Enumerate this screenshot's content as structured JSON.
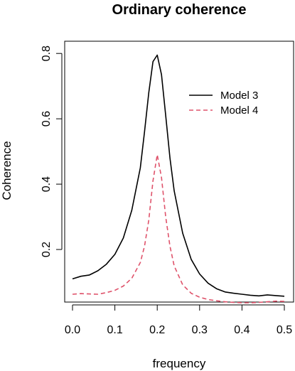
{
  "chart_data": {
    "type": "line",
    "title": "Ordinary coherence",
    "xlabel": "frequency",
    "ylabel": "Coherence",
    "xlim": [
      0.0,
      0.5
    ],
    "ylim": [
      0.05,
      0.82
    ],
    "xticks": [
      "0.0",
      "0.1",
      "0.2",
      "0.3",
      "0.4",
      "0.5"
    ],
    "yticks": [
      "0.2",
      "0.4",
      "0.6",
      "0.8"
    ],
    "legend_position": "top-right",
    "grid": false,
    "series": [
      {
        "name": "Model 3",
        "color": "#000000",
        "dash": "solid",
        "x": [
          0.0,
          0.02,
          0.04,
          0.06,
          0.08,
          0.1,
          0.12,
          0.14,
          0.16,
          0.17,
          0.18,
          0.19,
          0.2,
          0.21,
          0.22,
          0.23,
          0.24,
          0.26,
          0.28,
          0.3,
          0.32,
          0.34,
          0.36,
          0.38,
          0.4,
          0.42,
          0.44,
          0.46,
          0.48,
          0.5
        ],
        "y": [
          0.11,
          0.118,
          0.122,
          0.135,
          0.155,
          0.185,
          0.235,
          0.32,
          0.45,
          0.56,
          0.68,
          0.775,
          0.795,
          0.735,
          0.61,
          0.48,
          0.38,
          0.25,
          0.17,
          0.125,
          0.097,
          0.08,
          0.07,
          0.066,
          0.063,
          0.06,
          0.058,
          0.061,
          0.059,
          0.057
        ]
      },
      {
        "name": "Model 4",
        "color": "#df536b",
        "dash": "dashed",
        "x": [
          0.0,
          0.02,
          0.04,
          0.06,
          0.08,
          0.1,
          0.12,
          0.14,
          0.16,
          0.17,
          0.18,
          0.19,
          0.2,
          0.21,
          0.22,
          0.23,
          0.24,
          0.26,
          0.28,
          0.3,
          0.32,
          0.34,
          0.36,
          0.38,
          0.4,
          0.42,
          0.44,
          0.46,
          0.48,
          0.5
        ],
        "y": [
          0.063,
          0.065,
          0.064,
          0.063,
          0.068,
          0.075,
          0.088,
          0.112,
          0.16,
          0.21,
          0.29,
          0.41,
          0.49,
          0.42,
          0.3,
          0.21,
          0.15,
          0.092,
          0.066,
          0.054,
          0.047,
          0.043,
          0.04,
          0.038,
          0.037,
          0.037,
          0.038,
          0.04,
          0.042,
          0.041
        ]
      }
    ]
  }
}
